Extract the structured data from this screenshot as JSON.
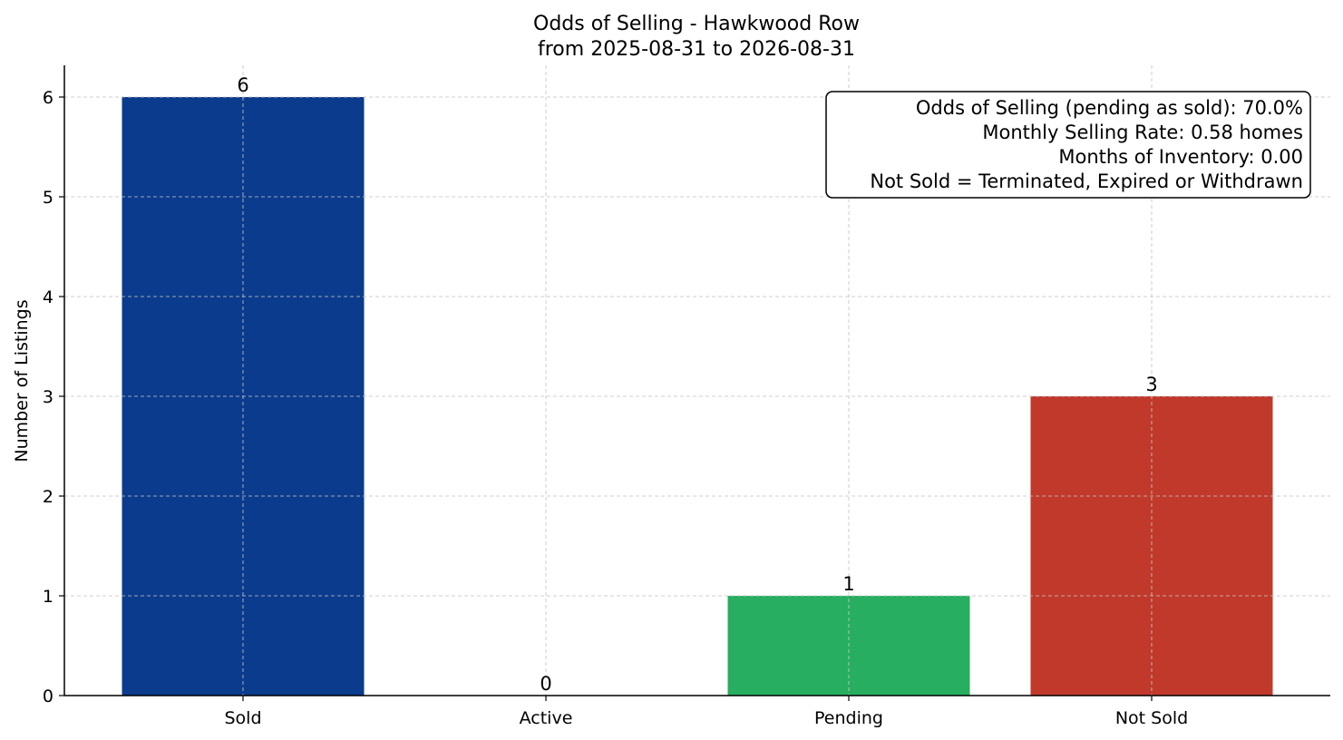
{
  "chart_data": {
    "type": "bar",
    "title": "Odds of Selling - Hawkwood Row",
    "subtitle": "from 2025-08-31 to 2026-08-31",
    "xlabel": "",
    "ylabel": "Number of Listings",
    "categories": [
      "Sold",
      "Active",
      "Pending",
      "Not Sold"
    ],
    "values": [
      6,
      0,
      1,
      3
    ],
    "colors": [
      "#0b3b8c",
      "#2e8b57",
      "#27ae60",
      "#c0392b"
    ],
    "ylim": [
      0,
      6.3
    ],
    "yticks": [
      "0",
      "1",
      "2",
      "3",
      "4",
      "5",
      "6"
    ],
    "grid": true,
    "info_box": {
      "position": "top-right",
      "lines": [
        "Odds of Selling (pending as sold): 70.0%",
        "Monthly Selling Rate: 0.58 homes",
        "Months of Inventory: 0.00",
        "Not Sold = Terminated, Expired or Withdrawn"
      ]
    }
  }
}
